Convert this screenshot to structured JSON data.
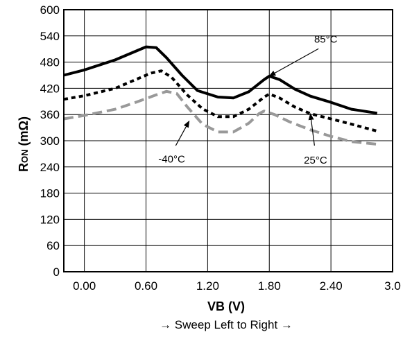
{
  "chart_data": {
    "type": "line",
    "xlabel": "VB (V)",
    "ylabel_main": "R",
    "ylabel_sub": "ON",
    "ylabel_unit": " (mΩ)",
    "note": "→ Sweep Left to Right →",
    "xlim": [
      -0.2,
      3.0
    ],
    "ylim": [
      0,
      600
    ],
    "xticks": [
      {
        "value": 0.0,
        "label": "0.00"
      },
      {
        "value": 0.6,
        "label": "0.60"
      },
      {
        "value": 1.2,
        "label": "1.20"
      },
      {
        "value": 1.8,
        "label": "1.80"
      },
      {
        "value": 2.4,
        "label": "2.40"
      },
      {
        "value": 3.0,
        "label": "3.0"
      }
    ],
    "yticks": [
      0,
      60,
      120,
      180,
      240,
      300,
      360,
      420,
      480,
      540,
      600
    ],
    "grid": true,
    "series": [
      {
        "name": "85°C",
        "color": "#000000",
        "style": "solid",
        "x": [
          -0.2,
          0.0,
          0.3,
          0.5,
          0.6,
          0.7,
          0.8,
          0.95,
          1.1,
          1.3,
          1.45,
          1.6,
          1.75,
          1.8,
          1.9,
          2.05,
          2.2,
          2.4,
          2.6,
          2.85
        ],
        "y": [
          450,
          462,
          485,
          505,
          515,
          513,
          490,
          450,
          415,
          400,
          398,
          412,
          440,
          448,
          440,
          418,
          402,
          388,
          372,
          363
        ]
      },
      {
        "name": "25°C",
        "color": "#000000",
        "style": "dotted",
        "x": [
          -0.2,
          0.0,
          0.3,
          0.5,
          0.65,
          0.75,
          0.85,
          1.0,
          1.15,
          1.3,
          1.45,
          1.6,
          1.75,
          1.8,
          1.9,
          2.05,
          2.2,
          2.4,
          2.6,
          2.85
        ],
        "y": [
          395,
          403,
          420,
          440,
          455,
          460,
          445,
          405,
          373,
          355,
          355,
          372,
          400,
          407,
          398,
          377,
          362,
          350,
          338,
          322
        ]
      },
      {
        "name": "-40°C",
        "color": "#999999",
        "style": "dashed",
        "x": [
          -0.2,
          0.0,
          0.3,
          0.5,
          0.7,
          0.8,
          0.9,
          1.0,
          1.15,
          1.3,
          1.45,
          1.6,
          1.7,
          1.75,
          1.85,
          2.0,
          2.2,
          2.4,
          2.6,
          2.85
        ],
        "y": [
          350,
          358,
          372,
          388,
          405,
          413,
          408,
          378,
          338,
          320,
          320,
          340,
          362,
          368,
          360,
          343,
          325,
          310,
          298,
          292
        ]
      }
    ],
    "annotations": [
      {
        "text": "85°C",
        "series": "85°C",
        "text_at": [
          2.35,
          520
        ],
        "point_at": [
          1.8,
          448
        ]
      },
      {
        "text": "25°C",
        "series": "25°C",
        "text_at": [
          2.25,
          270
        ],
        "point_at": [
          2.2,
          362
        ]
      },
      {
        "text": "-40°C",
        "series": "-40°C",
        "text_at": [
          0.85,
          272
        ],
        "point_at": [
          1.02,
          345
        ]
      }
    ]
  }
}
